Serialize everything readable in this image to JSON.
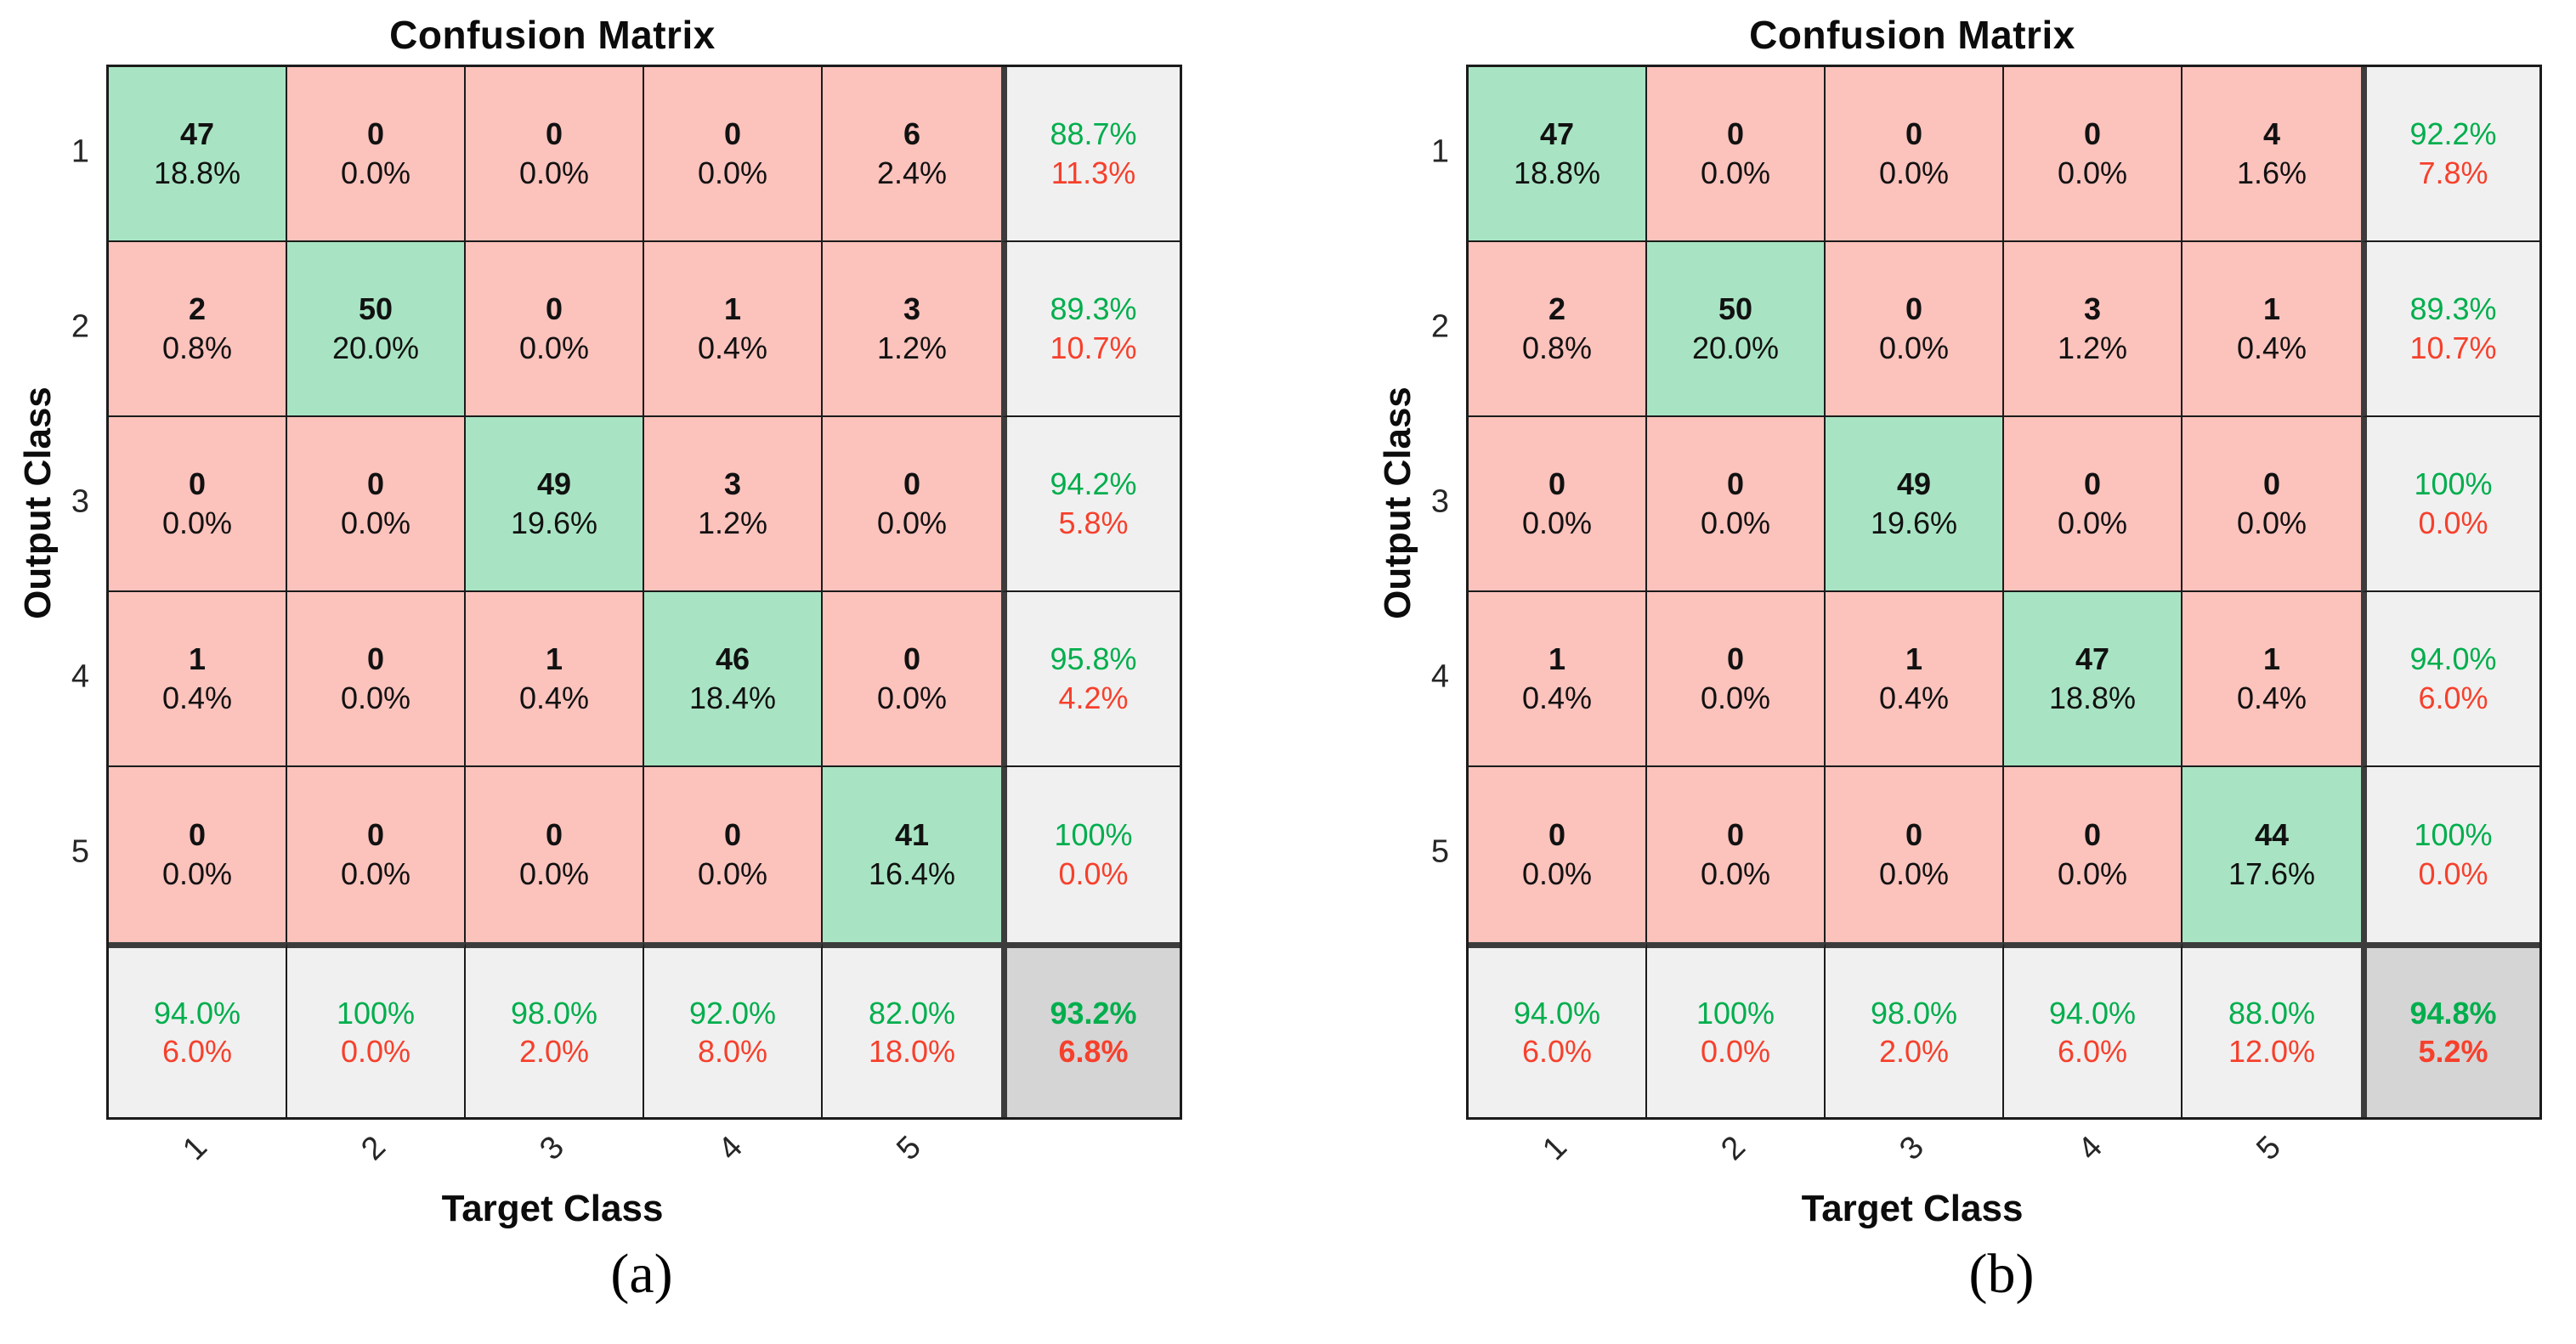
{
  "style": {
    "diag_fill": "#A8E4C3",
    "off_fill": "#FCC2BC",
    "summary_fill": "#F0F0F0",
    "overall_fill": "#D5D5D5",
    "good_text": "#00AE4D",
    "bad_text": "#F6402C",
    "grid_line": "#1b1b1b",
    "thick_line": "#3c3c3c"
  },
  "chart_data": [
    {
      "type": "heatmap",
      "title": "Confusion Matrix",
      "xlabel": "Target Class",
      "ylabel": "Output Class",
      "caption": "(a)",
      "categories": [
        "1",
        "2",
        "3",
        "4",
        "5"
      ],
      "matrix_counts": [
        [
          47,
          0,
          0,
          0,
          6
        ],
        [
          2,
          50,
          0,
          1,
          3
        ],
        [
          0,
          0,
          49,
          3,
          0
        ],
        [
          1,
          0,
          1,
          46,
          0
        ],
        [
          0,
          0,
          0,
          0,
          41
        ]
      ],
      "cells": [
        [
          {
            "count": "47",
            "pct": "18.8%"
          },
          {
            "count": "0",
            "pct": "0.0%"
          },
          {
            "count": "0",
            "pct": "0.0%"
          },
          {
            "count": "0",
            "pct": "0.0%"
          },
          {
            "count": "6",
            "pct": "2.4%"
          }
        ],
        [
          {
            "count": "2",
            "pct": "0.8%"
          },
          {
            "count": "50",
            "pct": "20.0%"
          },
          {
            "count": "0",
            "pct": "0.0%"
          },
          {
            "count": "1",
            "pct": "0.4%"
          },
          {
            "count": "3",
            "pct": "1.2%"
          }
        ],
        [
          {
            "count": "0",
            "pct": "0.0%"
          },
          {
            "count": "0",
            "pct": "0.0%"
          },
          {
            "count": "49",
            "pct": "19.6%"
          },
          {
            "count": "3",
            "pct": "1.2%"
          },
          {
            "count": "0",
            "pct": "0.0%"
          }
        ],
        [
          {
            "count": "1",
            "pct": "0.4%"
          },
          {
            "count": "0",
            "pct": "0.0%"
          },
          {
            "count": "1",
            "pct": "0.4%"
          },
          {
            "count": "46",
            "pct": "18.4%"
          },
          {
            "count": "0",
            "pct": "0.0%"
          }
        ],
        [
          {
            "count": "0",
            "pct": "0.0%"
          },
          {
            "count": "0",
            "pct": "0.0%"
          },
          {
            "count": "0",
            "pct": "0.0%"
          },
          {
            "count": "0",
            "pct": "0.0%"
          },
          {
            "count": "41",
            "pct": "16.4%"
          }
        ]
      ],
      "row_summaries": [
        {
          "top": "88.7%",
          "bottom": "11.3%"
        },
        {
          "top": "89.3%",
          "bottom": "10.7%"
        },
        {
          "top": "94.2%",
          "bottom": "5.8%"
        },
        {
          "top": "95.8%",
          "bottom": "4.2%"
        },
        {
          "top": "100%",
          "bottom": "0.0%"
        }
      ],
      "col_summaries": [
        {
          "top": "94.0%",
          "bottom": "6.0%"
        },
        {
          "top": "100%",
          "bottom": "0.0%"
        },
        {
          "top": "98.0%",
          "bottom": "2.0%"
        },
        {
          "top": "92.0%",
          "bottom": "8.0%"
        },
        {
          "top": "82.0%",
          "bottom": "18.0%"
        }
      ],
      "overall": {
        "top": "93.2%",
        "bottom": "6.8%"
      }
    },
    {
      "type": "heatmap",
      "title": "Confusion Matrix",
      "xlabel": "Target Class",
      "ylabel": "Output Class",
      "caption": "(b)",
      "categories": [
        "1",
        "2",
        "3",
        "4",
        "5"
      ],
      "matrix_counts": [
        [
          47,
          0,
          0,
          0,
          4
        ],
        [
          2,
          50,
          0,
          3,
          1
        ],
        [
          0,
          0,
          49,
          0,
          0
        ],
        [
          1,
          0,
          1,
          47,
          1
        ],
        [
          0,
          0,
          0,
          0,
          44
        ]
      ],
      "cells": [
        [
          {
            "count": "47",
            "pct": "18.8%"
          },
          {
            "count": "0",
            "pct": "0.0%"
          },
          {
            "count": "0",
            "pct": "0.0%"
          },
          {
            "count": "0",
            "pct": "0.0%"
          },
          {
            "count": "4",
            "pct": "1.6%"
          }
        ],
        [
          {
            "count": "2",
            "pct": "0.8%"
          },
          {
            "count": "50",
            "pct": "20.0%"
          },
          {
            "count": "0",
            "pct": "0.0%"
          },
          {
            "count": "3",
            "pct": "1.2%"
          },
          {
            "count": "1",
            "pct": "0.4%"
          }
        ],
        [
          {
            "count": "0",
            "pct": "0.0%"
          },
          {
            "count": "0",
            "pct": "0.0%"
          },
          {
            "count": "49",
            "pct": "19.6%"
          },
          {
            "count": "0",
            "pct": "0.0%"
          },
          {
            "count": "0",
            "pct": "0.0%"
          }
        ],
        [
          {
            "count": "1",
            "pct": "0.4%"
          },
          {
            "count": "0",
            "pct": "0.0%"
          },
          {
            "count": "1",
            "pct": "0.4%"
          },
          {
            "count": "47",
            "pct": "18.8%"
          },
          {
            "count": "1",
            "pct": "0.4%"
          }
        ],
        [
          {
            "count": "0",
            "pct": "0.0%"
          },
          {
            "count": "0",
            "pct": "0.0%"
          },
          {
            "count": "0",
            "pct": "0.0%"
          },
          {
            "count": "0",
            "pct": "0.0%"
          },
          {
            "count": "44",
            "pct": "17.6%"
          }
        ]
      ],
      "row_summaries": [
        {
          "top": "92.2%",
          "bottom": "7.8%"
        },
        {
          "top": "89.3%",
          "bottom": "10.7%"
        },
        {
          "top": "100%",
          "bottom": "0.0%"
        },
        {
          "top": "94.0%",
          "bottom": "6.0%"
        },
        {
          "top": "100%",
          "bottom": "0.0%"
        }
      ],
      "col_summaries": [
        {
          "top": "94.0%",
          "bottom": "6.0%"
        },
        {
          "top": "100%",
          "bottom": "0.0%"
        },
        {
          "top": "98.0%",
          "bottom": "2.0%"
        },
        {
          "top": "94.0%",
          "bottom": "6.0%"
        },
        {
          "top": "88.0%",
          "bottom": "12.0%"
        }
      ],
      "overall": {
        "top": "94.8%",
        "bottom": "5.2%"
      }
    }
  ]
}
